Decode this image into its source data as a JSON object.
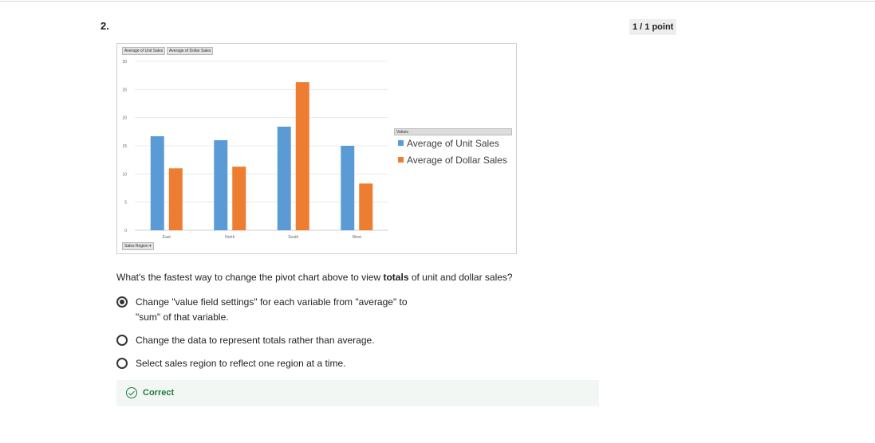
{
  "question": {
    "number": "2.",
    "points": "1 / 1 point",
    "prompt_before": "What's the fastest way to change the pivot chart above to view ",
    "prompt_bold": "totals",
    "prompt_after": " of unit and dollar sales?"
  },
  "options": [
    {
      "text": "Change \"value field settings\" for each variable from \"average\" to \"sum\" of that variable.",
      "selected": true
    },
    {
      "text": "Change the data to represent totals rather than average.",
      "selected": false
    },
    {
      "text": "Select sales region to reflect one region at a time.",
      "selected": false
    }
  ],
  "feedback": {
    "label": "Correct"
  },
  "pivot_buttons": {
    "values_unit": "Average of Unit Sales",
    "values_dollar": "Average of Dollar Sales",
    "axis_field": "Sales Region",
    "legend_field": "Values"
  },
  "chart_data": {
    "type": "bar",
    "categories": [
      "East",
      "North",
      "South",
      "West"
    ],
    "series": [
      {
        "name": "Average of Unit Sales",
        "values": [
          16.7,
          16,
          18.4,
          15
        ],
        "color": "#5b9bd5"
      },
      {
        "name": "Average of Dollar Sales",
        "values": [
          11,
          11.3,
          26.3,
          8.3
        ],
        "color": "#ed7d31"
      }
    ],
    "yticks": [
      0,
      5,
      10,
      15,
      20,
      25,
      30
    ],
    "ylim": [
      0,
      30
    ],
    "grid": true,
    "legend_placement": "right"
  }
}
